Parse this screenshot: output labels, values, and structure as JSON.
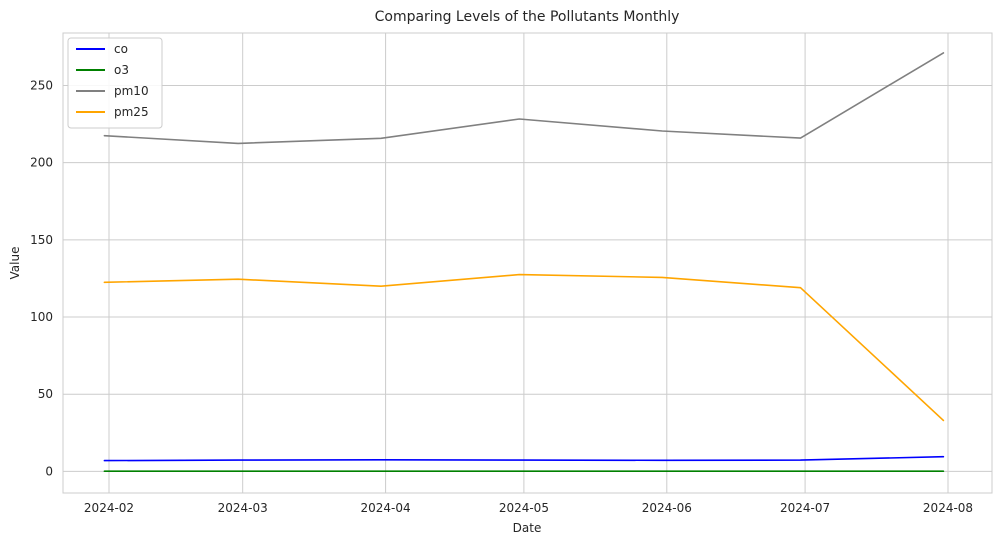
{
  "chart_data": {
    "type": "line",
    "title": "Comparing Levels of the Pollutants Monthly",
    "xlabel": "Date",
    "ylabel": "Value",
    "x": [
      "2024-01-31",
      "2024-02-29",
      "2024-03-31",
      "2024-04-30",
      "2024-05-31",
      "2024-06-30",
      "2024-07-31"
    ],
    "x_ticks": [
      "2024-02",
      "2024-03",
      "2024-04",
      "2024-05",
      "2024-06",
      "2024-07",
      "2024-08"
    ],
    "y_ticks": [
      0,
      50,
      100,
      150,
      200,
      250
    ],
    "ylim": [
      -14,
      284
    ],
    "grid": true,
    "legend_position": "top-left",
    "series": [
      {
        "name": "co",
        "color": "#0000ff",
        "values": [
          7.0,
          7.3,
          7.5,
          7.3,
          7.2,
          7.3,
          9.5
        ]
      },
      {
        "name": "o3",
        "color": "#008000",
        "values": [
          0.1,
          0.1,
          0.1,
          0.1,
          0.1,
          0.1,
          0.1
        ]
      },
      {
        "name": "pm10",
        "color": "#808080",
        "values": [
          217.5,
          212.5,
          215.8,
          228.3,
          220.5,
          215.9,
          271.1
        ]
      },
      {
        "name": "pm25",
        "color": "#ffa500",
        "values": [
          122.5,
          124.5,
          120.0,
          127.5,
          125.7,
          119.0,
          33.0
        ]
      }
    ]
  }
}
